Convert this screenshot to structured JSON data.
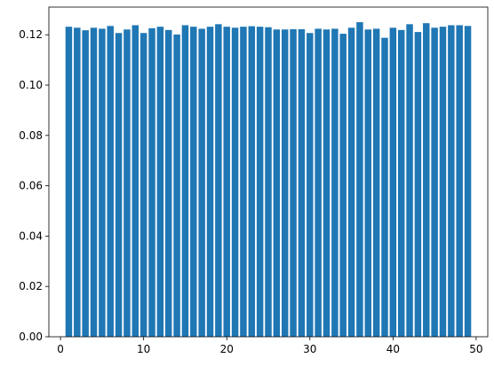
{
  "chart_data": {
    "type": "bar",
    "title": "",
    "xlabel": "",
    "ylabel": "",
    "x": [
      1,
      2,
      3,
      4,
      5,
      6,
      7,
      8,
      9,
      10,
      11,
      12,
      13,
      14,
      15,
      16,
      17,
      18,
      19,
      20,
      21,
      22,
      23,
      24,
      25,
      26,
      27,
      28,
      29,
      30,
      31,
      32,
      33,
      34,
      35,
      36,
      37,
      38,
      39,
      40,
      41,
      42,
      43,
      44,
      45,
      46,
      47,
      48,
      49
    ],
    "values": [
      0.1232,
      0.1228,
      0.1218,
      0.1228,
      0.1224,
      0.1235,
      0.1207,
      0.1221,
      0.1238,
      0.1207,
      0.1226,
      0.1232,
      0.1219,
      0.1201,
      0.1238,
      0.1232,
      0.1224,
      0.1232,
      0.1242,
      0.1232,
      0.1228,
      0.1232,
      0.1234,
      0.1232,
      0.123,
      0.1221,
      0.1221,
      0.1222,
      0.1222,
      0.1207,
      0.1224,
      0.1221,
      0.1224,
      0.1204,
      0.1228,
      0.125,
      0.1221,
      0.1224,
      0.1188,
      0.1228,
      0.1219,
      0.1242,
      0.1211,
      0.1246,
      0.1228,
      0.1232,
      0.1238,
      0.1238,
      0.1235
    ],
    "xlim": [
      -1.4,
      51.4
    ],
    "ylim": [
      0,
      0.131
    ],
    "xticks": [
      0,
      10,
      20,
      30,
      40,
      50
    ],
    "yticks": [
      0.0,
      0.02,
      0.04,
      0.06,
      0.08,
      0.1,
      0.12
    ],
    "ytick_labels": [
      "0.00",
      "0.02",
      "0.04",
      "0.06",
      "0.08",
      "0.10",
      "0.12"
    ],
    "bar_width": 0.8,
    "bar_color": "#1f77b4",
    "grid": false,
    "legend": "none"
  }
}
